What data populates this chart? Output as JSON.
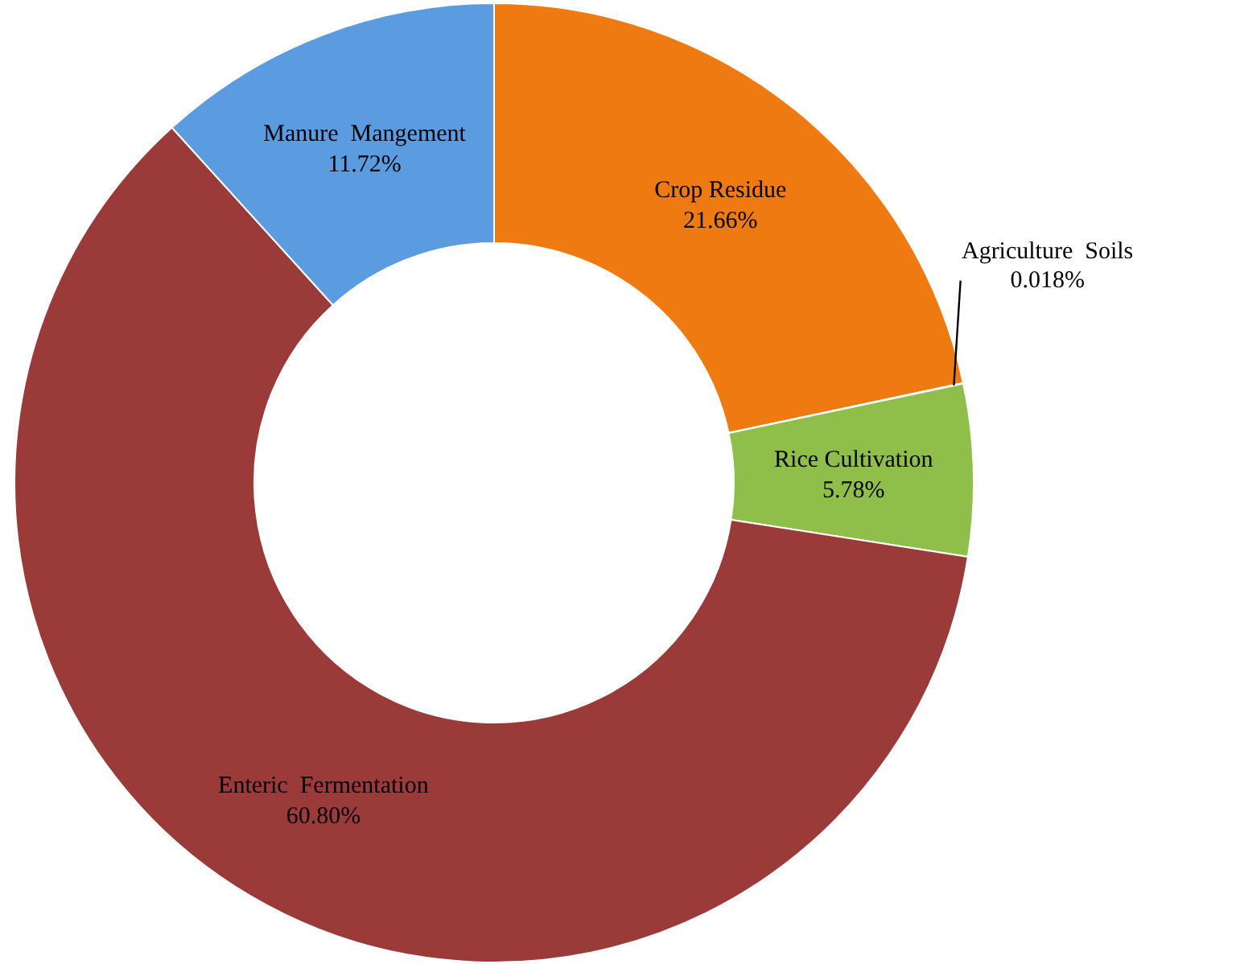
{
  "chart_data": {
    "type": "donut",
    "categories": [
      "Crop Residue",
      "Agriculture  Soils",
      "Rice Cultivation",
      "Enteric  Fermentation",
      "Manure  Mangement"
    ],
    "values": [
      21.66,
      0.018,
      5.78,
      60.8,
      11.72
    ],
    "value_labels": [
      "21.66%",
      "0.018%",
      "5.78%",
      "60.80%",
      "11.72%"
    ],
    "colors": [
      "#f07a12",
      "#d4e878",
      "#8fbf4a",
      "#9b3b39",
      "#5b9be0"
    ]
  }
}
